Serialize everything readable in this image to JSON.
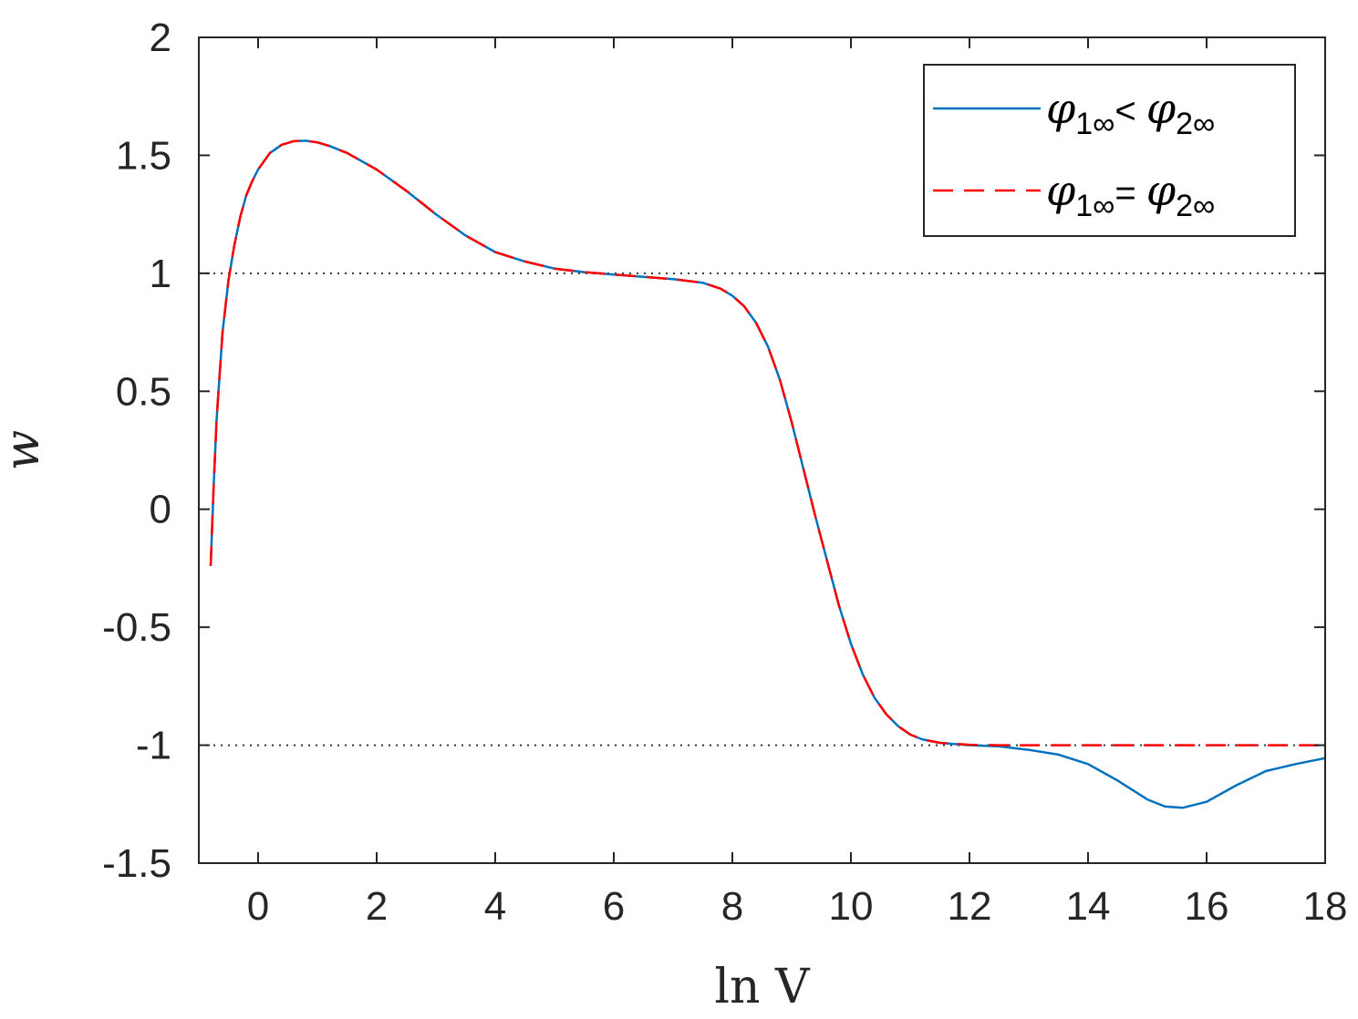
{
  "chart_data": {
    "type": "line",
    "xlabel": "ln V",
    "ylabel": "w",
    "xlim": [
      -1,
      18
    ],
    "ylim": [
      -1.5,
      2
    ],
    "xticks": [
      "0",
      "2",
      "4",
      "6",
      "8",
      "10",
      "12",
      "14",
      "16",
      "18"
    ],
    "yticks": [
      "2",
      "1.5",
      "1",
      "0.5",
      "0",
      "-0.5",
      "-1",
      "-1.5"
    ],
    "grid": false,
    "legend_position": "top-right",
    "reference_lines": [
      {
        "y": 1,
        "style": "dotted"
      },
      {
        "y": -1,
        "style": "dotted"
      }
    ],
    "series": [
      {
        "name": "φ1∞< φ2∞",
        "legend": {
          "main1": "φ",
          "sub1": "1∞",
          "op": "< ",
          "main2": "φ",
          "sub2": "2∞"
        },
        "color": "#0072BD",
        "style": "solid",
        "x": [
          -0.8,
          -0.75,
          -0.7,
          -0.6,
          -0.5,
          -0.4,
          -0.3,
          -0.2,
          -0.1,
          0,
          0.2,
          0.4,
          0.6,
          0.8,
          1.0,
          1.2,
          1.5,
          2.0,
          2.5,
          3.0,
          3.5,
          4.0,
          4.5,
          5.0,
          5.5,
          6.0,
          6.5,
          7.0,
          7.5,
          7.8,
          8.0,
          8.2,
          8.4,
          8.6,
          8.8,
          9.0,
          9.2,
          9.4,
          9.6,
          9.8,
          10.0,
          10.2,
          10.4,
          10.6,
          10.8,
          11.0,
          11.2,
          11.5,
          12.0,
          12.5,
          13.0,
          13.5,
          14.0,
          14.5,
          15.0,
          15.3,
          15.6,
          16.0,
          16.5,
          17.0,
          17.5,
          18.0
        ],
        "y": [
          -0.24,
          0.1,
          0.38,
          0.75,
          0.97,
          1.12,
          1.24,
          1.33,
          1.39,
          1.44,
          1.51,
          1.545,
          1.56,
          1.562,
          1.555,
          1.54,
          1.51,
          1.44,
          1.35,
          1.25,
          1.16,
          1.09,
          1.05,
          1.02,
          1.005,
          0.995,
          0.985,
          0.975,
          0.96,
          0.935,
          0.905,
          0.86,
          0.79,
          0.69,
          0.55,
          0.37,
          0.17,
          -0.03,
          -0.22,
          -0.41,
          -0.57,
          -0.7,
          -0.8,
          -0.87,
          -0.92,
          -0.955,
          -0.975,
          -0.99,
          -1.0,
          -1.005,
          -1.02,
          -1.04,
          -1.08,
          -1.15,
          -1.23,
          -1.26,
          -1.265,
          -1.24,
          -1.17,
          -1.11,
          -1.08,
          -1.055
        ]
      },
      {
        "name": "φ1∞= φ2∞",
        "legend": {
          "main1": "φ",
          "sub1": "1∞",
          "op": "= ",
          "main2": "φ",
          "sub2": "2∞"
        },
        "color": "#FF0000",
        "style": "dashed",
        "x": [
          -0.8,
          -0.75,
          -0.7,
          -0.6,
          -0.5,
          -0.4,
          -0.3,
          -0.2,
          -0.1,
          0,
          0.2,
          0.4,
          0.6,
          0.8,
          1.0,
          1.2,
          1.5,
          2.0,
          2.5,
          3.0,
          3.5,
          4.0,
          4.5,
          5.0,
          5.5,
          6.0,
          6.5,
          7.0,
          7.5,
          7.8,
          8.0,
          8.2,
          8.4,
          8.6,
          8.8,
          9.0,
          9.2,
          9.4,
          9.6,
          9.8,
          10.0,
          10.2,
          10.4,
          10.6,
          10.8,
          11.0,
          11.2,
          11.5,
          12.0,
          12.5,
          13.0,
          14.0,
          15.0,
          16.0,
          17.0,
          18.0
        ],
        "y": [
          -0.24,
          0.1,
          0.38,
          0.75,
          0.97,
          1.12,
          1.24,
          1.33,
          1.39,
          1.44,
          1.51,
          1.545,
          1.56,
          1.562,
          1.555,
          1.54,
          1.51,
          1.44,
          1.35,
          1.25,
          1.16,
          1.09,
          1.05,
          1.02,
          1.005,
          0.995,
          0.985,
          0.975,
          0.96,
          0.935,
          0.905,
          0.86,
          0.79,
          0.69,
          0.55,
          0.37,
          0.17,
          -0.03,
          -0.22,
          -0.41,
          -0.57,
          -0.7,
          -0.8,
          -0.87,
          -0.92,
          -0.955,
          -0.975,
          -0.99,
          -0.998,
          -1.0,
          -1.0,
          -1.0,
          -1.0,
          -1.0,
          -1.0,
          -1.0
        ]
      }
    ]
  }
}
